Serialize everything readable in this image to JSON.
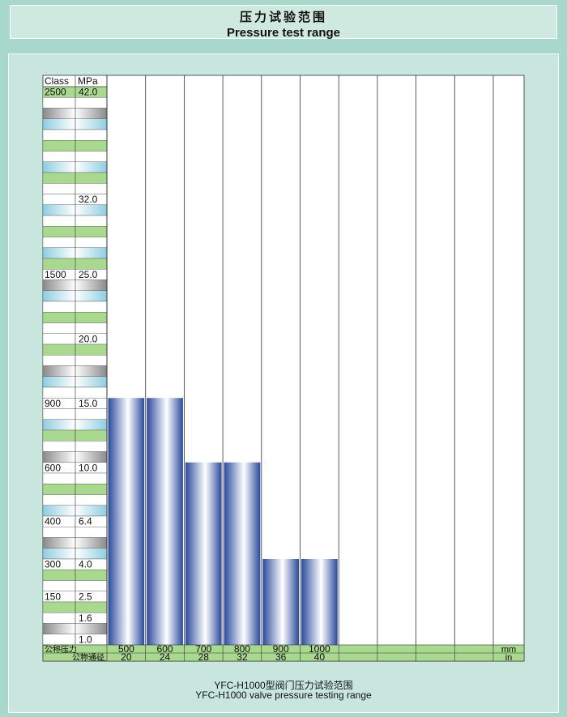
{
  "header": {
    "title_cn": "压力试验范围",
    "title_en": "Pressure test range"
  },
  "chart_data": {
    "type": "bar",
    "scale_header": {
      "class_label": "Class",
      "mpa_label": "MPa"
    },
    "class_ticks": [
      {
        "class": "2500",
        "mpa": "42.0",
        "value": 42.0
      },
      {
        "class": "",
        "mpa": "32.0",
        "value": 32.0
      },
      {
        "class": "1500",
        "mpa": "25.0",
        "value": 25.0
      },
      {
        "class": "",
        "mpa": "20.0",
        "value": 20.0
      },
      {
        "class": "900",
        "mpa": "15.0",
        "value": 15.0
      },
      {
        "class": "600",
        "mpa": "10.0",
        "value": 10.0
      },
      {
        "class": "400",
        "mpa": "6.4",
        "value": 6.4
      },
      {
        "class": "300",
        "mpa": "4.0",
        "value": 4.0
      },
      {
        "class": "150",
        "mpa": "2.5",
        "value": 2.5
      },
      {
        "class": "",
        "mpa": "1.6",
        "value": 1.6
      },
      {
        "class": "",
        "mpa": "1.0",
        "value": 1.0
      }
    ],
    "categories_mm": [
      "500",
      "600",
      "700",
      "800",
      "900",
      "1000",
      "",
      "",
      "",
      ""
    ],
    "categories_in": [
      "20",
      "24",
      "28",
      "32",
      "36",
      "40",
      "",
      "",
      "",
      ""
    ],
    "values_mpa": [
      15.0,
      15.0,
      10.0,
      10.0,
      4.0,
      4.0,
      null,
      null,
      null,
      null
    ],
    "row_label_nominal_pressure": "公称压力",
    "row_label_nominal_diameter": "公称通径",
    "unit_mm": "mm",
    "unit_in": "in",
    "bar_color": "#3a5cab"
  },
  "footer": {
    "caption_cn": "YFC-H1000型阀门压力试验范围",
    "caption_en": "YFC-H1000 valve pressure testing range"
  }
}
